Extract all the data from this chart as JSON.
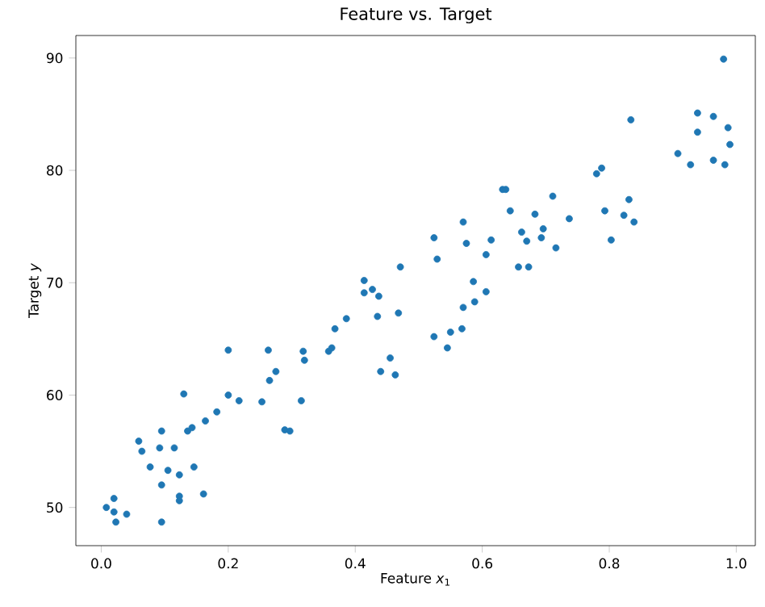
{
  "chart_data": {
    "type": "scatter",
    "title": "Feature vs. Target",
    "xlabel": "Feature *x*$_{1}$",
    "ylabel": "Target *y*",
    "color": "#1f77b4",
    "marker": "circle",
    "grid": false,
    "x": [
      0.008,
      0.02,
      0.02,
      0.023,
      0.04,
      0.059,
      0.064,
      0.077,
      0.092,
      0.095,
      0.095,
      0.095,
      0.105,
      0.115,
      0.123,
      0.123,
      0.123,
      0.13,
      0.136,
      0.143,
      0.146,
      0.164,
      0.161,
      0.182,
      0.2,
      0.2,
      0.217,
      0.253,
      0.263,
      0.265,
      0.275,
      0.289,
      0.297,
      0.315,
      0.318,
      0.32,
      0.358,
      0.363,
      0.368,
      0.386,
      0.414,
      0.414,
      0.427,
      0.437,
      0.435,
      0.44,
      0.455,
      0.463,
      0.468,
      0.471,
      0.524,
      0.524,
      0.529,
      0.545,
      0.55,
      0.568,
      0.57,
      0.57,
      0.575,
      0.586,
      0.588,
      0.606,
      0.606,
      0.614,
      0.632,
      0.637,
      0.644,
      0.657,
      0.662,
      0.67,
      0.673,
      0.683,
      0.693,
      0.696,
      0.711,
      0.716,
      0.737,
      0.78,
      0.788,
      0.793,
      0.803,
      0.823,
      0.831,
      0.834,
      0.839,
      0.908,
      0.928,
      0.939,
      0.939,
      0.964,
      0.964,
      0.982,
      0.987,
      0.99,
      0.98
    ],
    "values": [
      50.0,
      50.8,
      49.6,
      48.7,
      49.4,
      55.9,
      55.0,
      53.6,
      55.3,
      56.8,
      52.0,
      48.7,
      53.3,
      55.3,
      50.6,
      51.0,
      52.9,
      60.1,
      56.8,
      57.1,
      53.6,
      57.7,
      51.2,
      58.5,
      60.0,
      64.0,
      59.5,
      59.4,
      64.0,
      61.3,
      62.1,
      56.9,
      56.8,
      59.5,
      63.9,
      63.1,
      63.9,
      64.2,
      65.9,
      66.8,
      70.2,
      69.1,
      69.4,
      68.8,
      67.0,
      62.1,
      63.3,
      61.8,
      67.3,
      71.4,
      65.2,
      74.0,
      72.1,
      64.2,
      65.6,
      65.9,
      75.4,
      67.8,
      73.5,
      70.1,
      68.3,
      69.2,
      72.5,
      73.8,
      78.3,
      78.3,
      76.4,
      71.4,
      74.5,
      73.7,
      71.4,
      76.1,
      74.0,
      74.8,
      77.7,
      73.1,
      75.7,
      79.7,
      80.2,
      76.4,
      73.8,
      76.0,
      77.4,
      84.5,
      75.4,
      81.5,
      80.5,
      85.1,
      83.4,
      84.8,
      80.9,
      80.5,
      83.8,
      82.3,
      89.9
    ],
    "xlim": [
      -0.04,
      1.03
    ],
    "ylim": [
      46.6,
      92.0
    ],
    "xticks": [
      {
        "value": 0,
        "label": "0.0"
      },
      {
        "value": 0.2,
        "label": "0.2"
      },
      {
        "value": 0.4,
        "label": "0.4"
      },
      {
        "value": 0.6,
        "label": "0.6"
      },
      {
        "value": 0.8,
        "label": "0.8"
      },
      {
        "value": 1,
        "label": "1.0"
      }
    ],
    "yticks": [
      50,
      60,
      70,
      80,
      90
    ]
  }
}
